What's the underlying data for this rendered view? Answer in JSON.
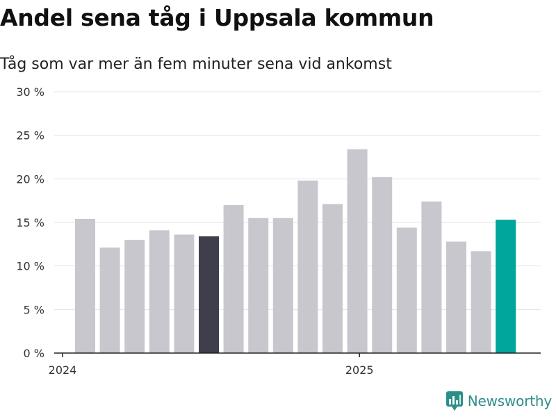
{
  "chart_data": {
    "type": "bar",
    "title": "Andel sena tåg i Uppsala kommun",
    "subtitle": "Tåg som var mer än fem minuter sena vid ankomst",
    "categories": [
      "2024-01",
      "2024-02",
      "2024-03",
      "2024-04",
      "2024-05",
      "2024-06",
      "2024-07",
      "2024-08",
      "2024-09",
      "2024-10",
      "2024-11",
      "2024-12",
      "2025-01",
      "2025-02",
      "2025-03",
      "2025-04",
      "2025-05",
      "2025-06"
    ],
    "values": [
      15.4,
      12.1,
      13.0,
      14.1,
      13.6,
      13.4,
      17.0,
      15.5,
      15.5,
      19.8,
      17.1,
      23.4,
      20.2,
      14.4,
      17.4,
      12.8,
      11.7,
      15.3
    ],
    "ylim": [
      0,
      30
    ],
    "yticks": [
      0,
      5,
      10,
      15,
      20,
      25,
      30
    ],
    "ytick_labels": [
      "0 %",
      "5 %",
      "10 %",
      "15 %",
      "20 %",
      "25 %",
      "30 %"
    ],
    "xtick_labels": [
      {
        "label": "2024",
        "at": "2024-01"
      },
      {
        "label": "2025",
        "at": "2025-01"
      }
    ],
    "grid": true,
    "colors": {
      "default": "#c8c7ce",
      "highlight_dark": "#3f3e4b",
      "highlight_latest": "#00a59b",
      "grid": "#e3e3e3",
      "axis": "#222222"
    },
    "highlights": {
      "2024-06": "highlight_dark",
      "2025-06": "highlight_latest"
    }
  },
  "brand": {
    "name": "Newsworthy",
    "logo_icon": "bar-chart-badge-icon",
    "color": "#2b8f88"
  }
}
